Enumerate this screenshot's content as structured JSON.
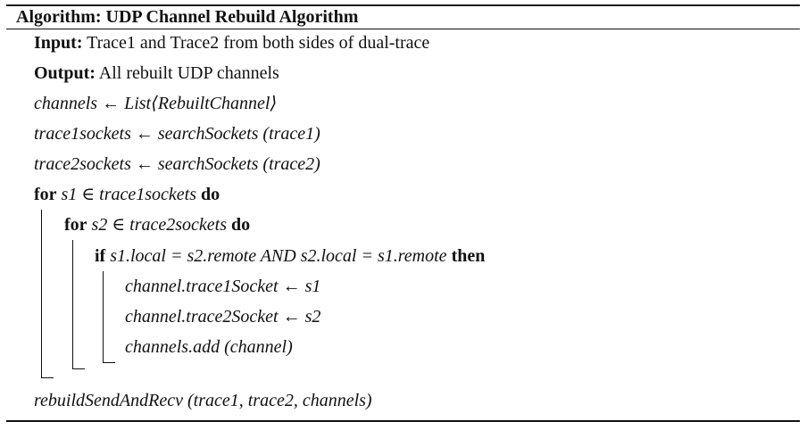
{
  "algorithm": {
    "title": "Algorithm: UDP Channel Rebuild Algorithm",
    "input": {
      "keyword": "Input:",
      "text": " Trace1 and Trace2 from both sides of dual-trace"
    },
    "output": {
      "keyword": "Output:",
      "text": " All rebuilt UDP channels"
    },
    "assign_channels": {
      "var": "channels",
      "arrow": " ← ",
      "expr": "List⟨RebuiltChannel⟩"
    },
    "assign_trace1": {
      "var": "trace1sockets",
      "arrow": " ← ",
      "func": "searchSockets",
      "args": " (trace1)"
    },
    "assign_trace2": {
      "var": "trace2sockets",
      "arrow": " ← ",
      "func": "searchSockets",
      "args": " (trace2)"
    },
    "for_outer": {
      "kw_for": "for",
      "cond": " s1 ∈ trace1sockets ",
      "kw_do": "do"
    },
    "for_inner": {
      "kw_for": "for",
      "cond": " s2 ∈ trace2sockets ",
      "kw_do": "do"
    },
    "if_stmt": {
      "kw_if": "if",
      "cond": " s1.local = s2.remote AND s2.local = s1.remote ",
      "kw_then": "then"
    },
    "stmt_1": "channel.trace1Socket  ← s1",
    "stmt_2": "channel.trace2Socket  ← s2",
    "stmt_3": "channels.add (channel)",
    "final_call": "rebuildSendAndRecv (trace1, trace2, channels)"
  }
}
